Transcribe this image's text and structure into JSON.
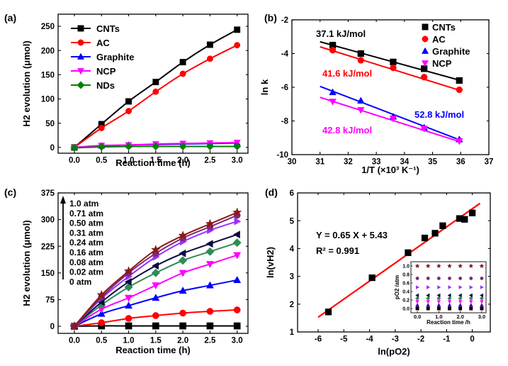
{
  "chart_data": [
    {
      "panel": "(a)",
      "type": "line",
      "xlabel": "Reaction time (h)",
      "ylabel": "H2 evolution (μmol)",
      "xlim": [
        -0.3,
        3.2
      ],
      "ylim": [
        -12,
        275
      ],
      "xticks": [
        0.0,
        0.5,
        1.0,
        1.5,
        2.0,
        2.5,
        3.0
      ],
      "xtick_labels": [
        "0.0",
        "0.5",
        "1.0",
        "1.5",
        "2.0",
        "2.5",
        "3.0"
      ],
      "yticks": [
        0,
        50,
        100,
        150,
        200,
        250
      ],
      "ytick_labels": [
        "0",
        "50",
        "100",
        "150",
        "200",
        "250"
      ],
      "legend_position": "top-left",
      "series": [
        {
          "name": "CNTs",
          "color": "#000000",
          "marker": "square",
          "x": [
            0,
            0.5,
            1.0,
            1.5,
            2.0,
            2.5,
            3.0
          ],
          "values": [
            0,
            48,
            95,
            135,
            176,
            212,
            243
          ]
        },
        {
          "name": "AC",
          "color": "#ff0000",
          "marker": "circle",
          "x": [
            0,
            0.5,
            1.0,
            1.5,
            2.0,
            2.5,
            3.0
          ],
          "values": [
            0,
            40,
            75,
            115,
            152,
            183,
            211
          ]
        },
        {
          "name": "Graphite",
          "color": "#0000ff",
          "marker": "triangle-up",
          "x": [
            0,
            0.5,
            1.0,
            1.5,
            2.0,
            2.5,
            3.0
          ],
          "values": [
            0,
            3,
            5,
            6,
            7,
            8,
            9
          ]
        },
        {
          "name": "NCP",
          "color": "#ff00ff",
          "marker": "triangle-down",
          "x": [
            0,
            0.5,
            1.0,
            1.5,
            2.0,
            2.5,
            3.0
          ],
          "values": [
            0,
            4,
            5,
            7,
            8,
            9,
            10
          ]
        },
        {
          "name": "NDs",
          "color": "#008000",
          "marker": "diamond",
          "x": [
            0,
            0.5,
            1.0,
            1.5,
            2.0,
            2.5,
            3.0
          ],
          "values": [
            -1,
            1,
            2,
            2,
            2,
            2,
            2
          ]
        }
      ]
    },
    {
      "panel": "(b)",
      "type": "scatter",
      "xlabel": "1/T (×10³ K⁻¹)",
      "ylabel": "ln k",
      "xlim": [
        30,
        37
      ],
      "ylim": [
        -10,
        -2
      ],
      "xticks": [
        30,
        31,
        32,
        33,
        34,
        35,
        36,
        37
      ],
      "xtick_labels": [
        "30",
        "31",
        "32",
        "33",
        "34",
        "35",
        "36",
        "37"
      ],
      "yticks": [
        -10,
        -8,
        -6,
        -4,
        -2
      ],
      "ytick_labels": [
        "-10",
        "-8",
        "-6",
        "-4",
        "-2"
      ],
      "legend_position": "top-right",
      "annotations": [
        {
          "text": "37.1 kJ/mol",
          "color": "#000000"
        },
        {
          "text": "41.6 kJ/mol",
          "color": "#ff0000"
        },
        {
          "text": "52.8 kJ/mol",
          "color": "#0000ff"
        },
        {
          "text": "42.8 kJ/mol",
          "color": "#ff00ff"
        }
      ],
      "series": [
        {
          "name": "CNTs",
          "color": "#000000",
          "marker": "square",
          "x": [
            31.45,
            32.45,
            33.6,
            34.7,
            35.95
          ],
          "values": [
            -3.5,
            -4.0,
            -4.5,
            -4.9,
            -5.6
          ],
          "fit": [
            [
              31.0,
              -3.3
            ],
            [
              36.0,
              -5.6
            ]
          ]
        },
        {
          "name": "AC",
          "color": "#ff0000",
          "marker": "circle",
          "x": [
            31.45,
            32.45,
            33.6,
            34.7,
            35.95
          ],
          "values": [
            -3.8,
            -4.4,
            -4.85,
            -5.4,
            -6.15
          ],
          "fit": [
            [
              31.0,
              -3.6
            ],
            [
              36.0,
              -6.2
            ]
          ]
        },
        {
          "name": "Graphite",
          "color": "#0000ff",
          "marker": "triangle-up",
          "x": [
            31.45,
            32.45,
            33.6,
            34.7,
            35.95
          ],
          "values": [
            -6.3,
            -6.8,
            -7.75,
            -8.4,
            -9.1
          ],
          "fit": [
            [
              31.0,
              -5.95
            ],
            [
              36.0,
              -9.15
            ]
          ]
        },
        {
          "name": "NCP",
          "color": "#ff00ff",
          "marker": "triangle-down",
          "x": [
            31.45,
            32.45,
            33.6,
            34.7,
            35.95
          ],
          "values": [
            -6.85,
            -7.35,
            -7.85,
            -8.45,
            -9.2
          ],
          "fit": [
            [
              31.0,
              -6.6
            ],
            [
              36.0,
              -9.25
            ]
          ]
        }
      ]
    },
    {
      "panel": "(c)",
      "type": "line",
      "xlabel": "Reaction time (h)",
      "ylabel": "H2 evolution (μmol)",
      "xlim": [
        -0.3,
        3.2
      ],
      "ylim": [
        -20,
        375
      ],
      "xticks": [
        0.0,
        0.5,
        1.0,
        1.5,
        2.0,
        2.5,
        3.0
      ],
      "xtick_labels": [
        "0.0",
        "0.5",
        "1.0",
        "1.5",
        "2.0",
        "2.5",
        "3.0"
      ],
      "yticks": [
        0,
        75,
        150,
        225,
        300,
        375
      ],
      "ytick_labels": [
        "0",
        "75",
        "150",
        "225",
        "300",
        "375"
      ],
      "legend_position": "top-left",
      "legend_entries": [
        "1.0 atm",
        "0.71 atm",
        "0.50 atm",
        "0.31 atm",
        "0.24 atm",
        "0.16 atm",
        "0.08 atm",
        "0.02 atm",
        "0 atm"
      ],
      "series": [
        {
          "name": "1.0 atm",
          "color": "#8b1a1a",
          "marker": "star",
          "x": [
            0,
            0.5,
            1.0,
            1.5,
            2.0,
            2.5,
            3.0
          ],
          "values": [
            0,
            88,
            155,
            215,
            255,
            288,
            320
          ]
        },
        {
          "name": "0.71 atm",
          "color": "#7a2a7a",
          "marker": "circle",
          "x": [
            0,
            0.5,
            1.0,
            1.5,
            2.0,
            2.5,
            3.0
          ],
          "values": [
            0,
            82,
            150,
            205,
            248,
            280,
            312
          ]
        },
        {
          "name": "0.50 atm",
          "color": "#9b30ff",
          "marker": "triangle-right",
          "x": [
            0,
            0.5,
            1.0,
            1.5,
            2.0,
            2.5,
            3.0
          ],
          "values": [
            0,
            78,
            140,
            195,
            238,
            270,
            295
          ]
        },
        {
          "name": "0.31 atm",
          "color": "#0a0a40",
          "marker": "triangle-left",
          "x": [
            0,
            0.5,
            1.0,
            1.5,
            2.0,
            2.5,
            3.0
          ],
          "values": [
            0,
            68,
            125,
            170,
            205,
            232,
            258
          ]
        },
        {
          "name": "0.24 atm",
          "color": "#2e8b57",
          "marker": "diamond",
          "x": [
            0,
            0.5,
            1.0,
            1.5,
            2.0,
            2.5,
            3.0
          ],
          "values": [
            0,
            60,
            110,
            150,
            185,
            210,
            235
          ]
        },
        {
          "name": "0.16 atm",
          "color": "#ff00ff",
          "marker": "triangle-down",
          "x": [
            0,
            0.5,
            1.0,
            1.5,
            2.0,
            2.5,
            3.0
          ],
          "values": [
            0,
            48,
            80,
            115,
            150,
            175,
            200
          ]
        },
        {
          "name": "0.08 atm",
          "color": "#0000ff",
          "marker": "triangle-up",
          "x": [
            0,
            0.5,
            1.0,
            1.5,
            2.0,
            2.5,
            3.0
          ],
          "values": [
            0,
            35,
            58,
            80,
            100,
            115,
            130
          ]
        },
        {
          "name": "0.02 atm",
          "color": "#ff0000",
          "marker": "circle",
          "x": [
            0,
            0.5,
            1.0,
            1.5,
            2.0,
            2.5,
            3.0
          ],
          "values": [
            0,
            10,
            22,
            30,
            37,
            42,
            46
          ]
        },
        {
          "name": "0 atm",
          "color": "#000000",
          "marker": "square",
          "x": [
            0,
            0.5,
            1.0,
            1.5,
            2.0,
            2.5,
            3.0
          ],
          "values": [
            0,
            1,
            1,
            1,
            1,
            1,
            1
          ]
        }
      ]
    },
    {
      "panel": "(d)",
      "type": "scatter",
      "xlabel": "ln(pO2)",
      "ylabel": "ln(vH2)",
      "xlim": [
        -6.8,
        0.7
      ],
      "ylim": [
        1,
        6
      ],
      "xticks": [
        -6,
        -5,
        -4,
        -3,
        -2,
        -1,
        0
      ],
      "xtick_labels": [
        "-6",
        "-5",
        "-4",
        "-3",
        "-2",
        "-1",
        "0"
      ],
      "yticks": [
        1,
        2,
        3,
        4,
        5,
        6
      ],
      "ytick_labels": [
        "1",
        "2",
        "3",
        "4",
        "5",
        "6"
      ],
      "annotations": [
        {
          "text": "Y = 0.65 X + 5.43"
        },
        {
          "text": "R² = 0.991"
        }
      ],
      "fit": {
        "slope": 0.65,
        "intercept": 5.43,
        "x_range": [
          -6.0,
          0.3
        ],
        "color": "#ff0000"
      },
      "series": [
        {
          "name": "",
          "color": "#000000",
          "marker": "square",
          "x": [
            -5.6,
            -3.9,
            -2.5,
            -1.85,
            -1.45,
            -1.15,
            -0.5,
            -0.3,
            0.0
          ],
          "values": [
            1.72,
            2.95,
            3.85,
            4.38,
            4.55,
            4.82,
            5.08,
            5.05,
            5.28
          ]
        }
      ],
      "inset": {
        "xlabel": "Reaction time /h",
        "ylabel": "pO2 /atm",
        "xlim": [
          -0.3,
          3.2
        ],
        "ylim": [
          -0.1,
          1.1
        ],
        "xticks": [
          0.0,
          1.0,
          2.0,
          3.0
        ],
        "xtick_labels": [
          "0.0",
          "1.0",
          "2.0",
          "3.0"
        ],
        "yticks": [
          0.0,
          0.2,
          0.4,
          0.6,
          0.8,
          1.0
        ],
        "ytick_labels": [
          "0.0",
          "0.2",
          "0.4",
          "0.6",
          "0.8",
          "1.0"
        ],
        "x": [
          0,
          0.5,
          1.0,
          1.5,
          2.0,
          2.5,
          3.0
        ],
        "levels": [
          {
            "value": 1.0,
            "color": "#8b1a1a",
            "marker": "star"
          },
          {
            "value": 0.71,
            "color": "#7a2a7a",
            "marker": "circle"
          },
          {
            "value": 0.5,
            "color": "#9b30ff",
            "marker": "triangle-right"
          },
          {
            "value": 0.31,
            "color": "#0a0a40",
            "marker": "triangle-left"
          },
          {
            "value": 0.24,
            "color": "#2e8b57",
            "marker": "diamond"
          },
          {
            "value": 0.16,
            "color": "#ff00ff",
            "marker": "triangle-down"
          },
          {
            "value": 0.08,
            "color": "#0000ff",
            "marker": "triangle-up"
          },
          {
            "value": 0.02,
            "color": "#ff0000",
            "marker": "circle"
          },
          {
            "value": 0.0,
            "color": "#000000",
            "marker": "square"
          }
        ]
      }
    }
  ],
  "panel_labels": [
    "(a)",
    "(b)",
    "(c)",
    "(d)"
  ]
}
